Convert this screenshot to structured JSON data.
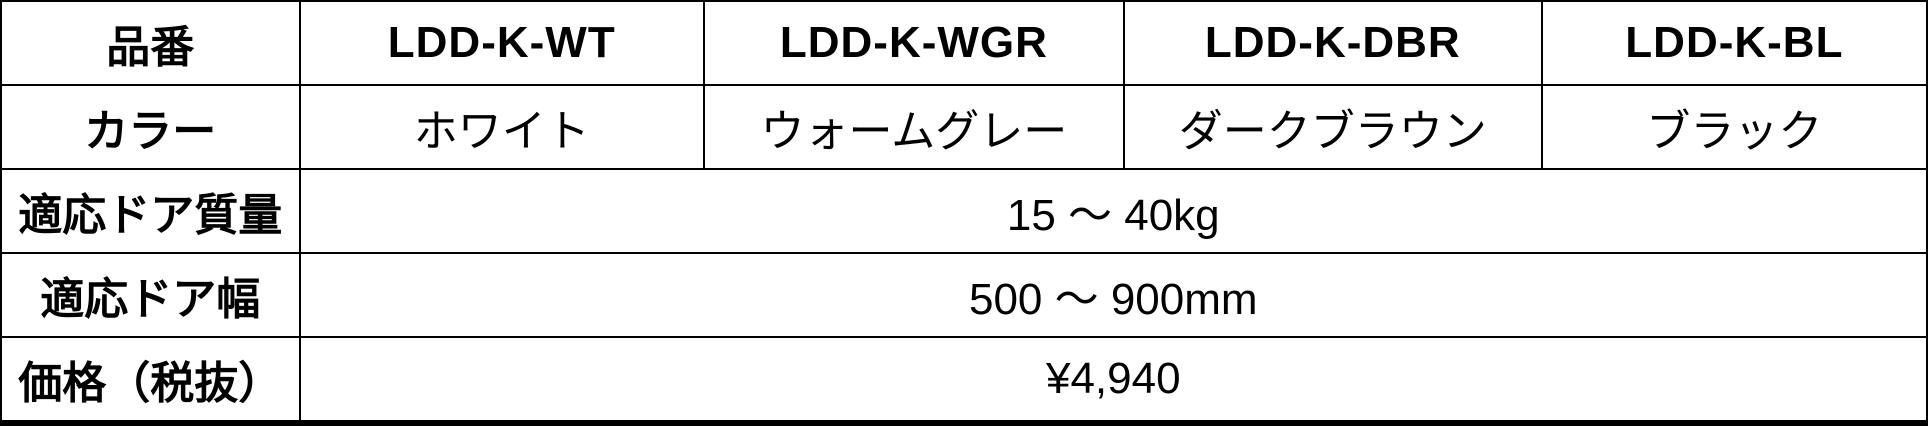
{
  "table": {
    "header_row": {
      "label": "品番",
      "models": [
        "LDD-K-WT",
        "LDD-K-WGR",
        "LDD-K-DBR",
        "LDD-K-BL"
      ]
    },
    "color_row": {
      "label": "カラー",
      "values": [
        "ホワイト",
        "ウォームグレー",
        "ダークブラウン",
        "ブラック"
      ]
    },
    "spec_rows": [
      {
        "label": "適応ドア質量",
        "value": "15 ～ 40kg"
      },
      {
        "label": "適応ドア幅",
        "value": "500 ～ 900mm"
      },
      {
        "label": "価格（税抜）",
        "value": "¥4,940"
      }
    ]
  },
  "colors": {
    "border": "#000000",
    "text": "#000000",
    "background": "#ffffff"
  }
}
